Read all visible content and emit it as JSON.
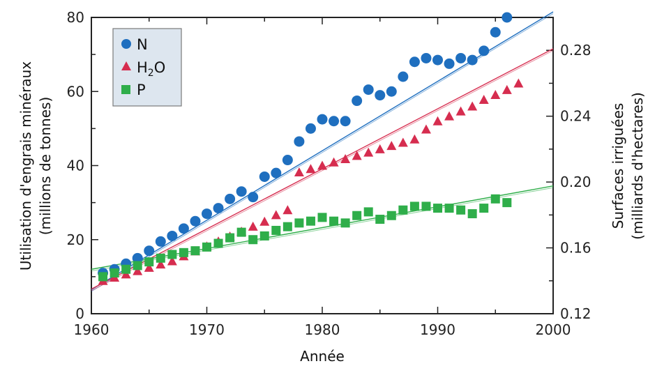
{
  "chart_data": {
    "type": "scatter",
    "xlabel": "Année",
    "ylabel_left_line1": "Utilisation d'engrais minéraux",
    "ylabel_left_line2": "(millions de tonnes)",
    "ylabel_right_line1": "Surfaces irriguées",
    "ylabel_right_line2": "(milliards d'hectares)",
    "xlim": [
      1960,
      2000
    ],
    "ylim_left": [
      0,
      80
    ],
    "ylim_right": [
      0.12,
      0.3
    ],
    "x_ticks": [
      1960,
      1970,
      1980,
      1990,
      2000
    ],
    "y_left_ticks": [
      0,
      20,
      40,
      60,
      80
    ],
    "y_right_ticks": [
      0.12,
      0.16,
      0.2,
      0.24,
      0.28
    ],
    "legend_position": "top-left",
    "series": [
      {
        "name": "N",
        "axis": "left",
        "marker": "circle",
        "color": "#1f6fbf",
        "x": [
          1961,
          1962,
          1963,
          1964,
          1965,
          1966,
          1967,
          1968,
          1969,
          1970,
          1971,
          1972,
          1973,
          1974,
          1975,
          1976,
          1977,
          1978,
          1979,
          1980,
          1981,
          1982,
          1983,
          1984,
          1985,
          1986,
          1987,
          1988,
          1989,
          1990,
          1991,
          1992,
          1993,
          1994,
          1995,
          1996
        ],
        "y": [
          11,
          12,
          13.5,
          15,
          17,
          19.5,
          21,
          23,
          25,
          27,
          28.5,
          31,
          33,
          31.5,
          37,
          38,
          41.5,
          46.5,
          50,
          52.5,
          52,
          52,
          57.5,
          60.5,
          59,
          60,
          64,
          68,
          69,
          68.5,
          67.5,
          69,
          68.5,
          71,
          76,
          80
        ],
        "trend": [
          6.5,
          81.5
        ]
      },
      {
        "name_prefix": "H",
        "name_sub": "2",
        "name_suffix": "O",
        "axis": "right",
        "marker": "triangle",
        "color": "#d62d4f",
        "x": [
          1961,
          1962,
          1963,
          1964,
          1965,
          1966,
          1967,
          1968,
          1969,
          1970,
          1971,
          1972,
          1973,
          1974,
          1975,
          1976,
          1977,
          1978,
          1979,
          1980,
          1981,
          1982,
          1983,
          1984,
          1985,
          1986,
          1987,
          1988,
          1989,
          1990,
          1991,
          1992,
          1993,
          1994,
          1995,
          1996,
          1997
        ],
        "y": [
          0.14,
          0.142,
          0.144,
          0.146,
          0.148,
          0.15,
          0.152,
          0.155,
          0.158,
          0.161,
          0.164,
          0.167,
          0.17,
          0.173,
          0.176,
          0.18,
          0.183,
          0.206,
          0.208,
          0.21,
          0.212,
          0.214,
          0.216,
          0.218,
          0.22,
          0.222,
          0.224,
          0.226,
          0.232,
          0.237,
          0.24,
          0.243,
          0.246,
          0.25,
          0.253,
          0.256,
          0.26
        ],
        "trend": [
          0.135,
          0.281
        ]
      },
      {
        "name": "P",
        "axis": "left",
        "marker": "square",
        "color": "#2fae4a",
        "x": [
          1961,
          1962,
          1963,
          1964,
          1965,
          1966,
          1967,
          1968,
          1969,
          1970,
          1971,
          1972,
          1973,
          1974,
          1975,
          1976,
          1977,
          1978,
          1979,
          1980,
          1981,
          1982,
          1983,
          1984,
          1985,
          1986,
          1987,
          1988,
          1989,
          1990,
          1991,
          1992,
          1993,
          1994,
          1995,
          1996
        ],
        "y": [
          10,
          11,
          12,
          13,
          14,
          15,
          16,
          16.5,
          17,
          18,
          19,
          20.5,
          22,
          20,
          21,
          22.5,
          23.5,
          24.5,
          25,
          26,
          25,
          24.5,
          26.5,
          27.5,
          25.5,
          26.5,
          28,
          29,
          29,
          28.5,
          28.5,
          28,
          27,
          28.5,
          31,
          30
        ],
        "trend": [
          12,
          34.5
        ]
      }
    ]
  }
}
